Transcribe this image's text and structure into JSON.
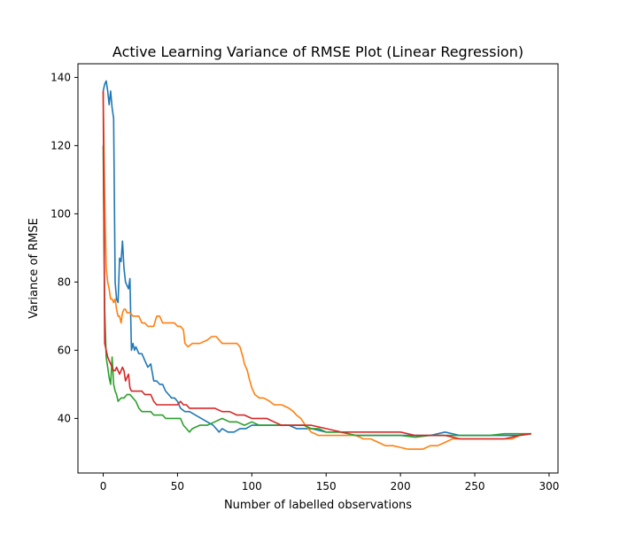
{
  "chart_data": {
    "type": "line",
    "title": "Active Learning Variance of RMSE Plot (Linear Regression)",
    "xlabel": "Number of labelled observations",
    "ylabel": "Variance of RMSE",
    "xlim": [
      -17,
      306
    ],
    "ylim": [
      24,
      144
    ],
    "xticks": [
      0,
      50,
      100,
      150,
      200,
      250,
      300
    ],
    "yticks": [
      40,
      60,
      80,
      100,
      120,
      140
    ],
    "grid": false,
    "legend": false,
    "series": [
      {
        "color": "#1f77b4",
        "points": [
          [
            0,
            136
          ],
          [
            1,
            138
          ],
          [
            2,
            139
          ],
          [
            3,
            136
          ],
          [
            4,
            132
          ],
          [
            5,
            136
          ],
          [
            6,
            131
          ],
          [
            7,
            128
          ],
          [
            8,
            80
          ],
          [
            9,
            75
          ],
          [
            10,
            74
          ],
          [
            11,
            87
          ],
          [
            12,
            86
          ],
          [
            13,
            92
          ],
          [
            14,
            84
          ],
          [
            15,
            80
          ],
          [
            16,
            79
          ],
          [
            17,
            78
          ],
          [
            18,
            81
          ],
          [
            19,
            60
          ],
          [
            20,
            62
          ],
          [
            21,
            60
          ],
          [
            22,
            61
          ],
          [
            24,
            59
          ],
          [
            26,
            59
          ],
          [
            28,
            57
          ],
          [
            30,
            55
          ],
          [
            32,
            56
          ],
          [
            34,
            51
          ],
          [
            36,
            51
          ],
          [
            38,
            50
          ],
          [
            40,
            50
          ],
          [
            42,
            48
          ],
          [
            44,
            47
          ],
          [
            46,
            46
          ],
          [
            48,
            46
          ],
          [
            50,
            45
          ],
          [
            52,
            43
          ],
          [
            55,
            42
          ],
          [
            58,
            42
          ],
          [
            62,
            41
          ],
          [
            66,
            40
          ],
          [
            70,
            39
          ],
          [
            74,
            38
          ],
          [
            78,
            36
          ],
          [
            80,
            37
          ],
          [
            84,
            36
          ],
          [
            88,
            36
          ],
          [
            92,
            37
          ],
          [
            96,
            37
          ],
          [
            100,
            38
          ],
          [
            105,
            38
          ],
          [
            110,
            38
          ],
          [
            115,
            38
          ],
          [
            120,
            38
          ],
          [
            125,
            38
          ],
          [
            130,
            37
          ],
          [
            135,
            37
          ],
          [
            140,
            37
          ],
          [
            150,
            36
          ],
          [
            160,
            36
          ],
          [
            170,
            35
          ],
          [
            180,
            35
          ],
          [
            190,
            35
          ],
          [
            200,
            35
          ],
          [
            210,
            35
          ],
          [
            220,
            35
          ],
          [
            230,
            36
          ],
          [
            240,
            35
          ],
          [
            250,
            35
          ],
          [
            260,
            35
          ],
          [
            270,
            35
          ],
          [
            280,
            35
          ],
          [
            288,
            35.5
          ]
        ]
      },
      {
        "color": "#ff7f0e",
        "points": [
          [
            0,
            136
          ],
          [
            1,
            105
          ],
          [
            2,
            84
          ],
          [
            3,
            80
          ],
          [
            4,
            78
          ],
          [
            5,
            75
          ],
          [
            6,
            75
          ],
          [
            7,
            74
          ],
          [
            8,
            75
          ],
          [
            9,
            72
          ],
          [
            10,
            70
          ],
          [
            11,
            70
          ],
          [
            12,
            68
          ],
          [
            13,
            71
          ],
          [
            14,
            72
          ],
          [
            15,
            72
          ],
          [
            16,
            71
          ],
          [
            18,
            71
          ],
          [
            20,
            70
          ],
          [
            22,
            70
          ],
          [
            24,
            70
          ],
          [
            26,
            68
          ],
          [
            28,
            68
          ],
          [
            30,
            67
          ],
          [
            32,
            67
          ],
          [
            34,
            67
          ],
          [
            36,
            70
          ],
          [
            38,
            70
          ],
          [
            40,
            68
          ],
          [
            42,
            68
          ],
          [
            44,
            68
          ],
          [
            46,
            68
          ],
          [
            48,
            68
          ],
          [
            50,
            67
          ],
          [
            52,
            67
          ],
          [
            54,
            66
          ],
          [
            55,
            62
          ],
          [
            57,
            61
          ],
          [
            60,
            62
          ],
          [
            65,
            62
          ],
          [
            70,
            63
          ],
          [
            73,
            64
          ],
          [
            76,
            64
          ],
          [
            80,
            62
          ],
          [
            85,
            62
          ],
          [
            90,
            62
          ],
          [
            92,
            61
          ],
          [
            94,
            58
          ],
          [
            95,
            56
          ],
          [
            96,
            55
          ],
          [
            97,
            54
          ],
          [
            98,
            52
          ],
          [
            100,
            49
          ],
          [
            102,
            47
          ],
          [
            105,
            46
          ],
          [
            108,
            46
          ],
          [
            112,
            45
          ],
          [
            115,
            44
          ],
          [
            120,
            44
          ],
          [
            125,
            43
          ],
          [
            128,
            42
          ],
          [
            130,
            41
          ],
          [
            133,
            40
          ],
          [
            136,
            38
          ],
          [
            140,
            36
          ],
          [
            145,
            35
          ],
          [
            150,
            35
          ],
          [
            155,
            35
          ],
          [
            160,
            35
          ],
          [
            165,
            35
          ],
          [
            170,
            35
          ],
          [
            175,
            34
          ],
          [
            180,
            34
          ],
          [
            185,
            33
          ],
          [
            190,
            32
          ],
          [
            195,
            32
          ],
          [
            200,
            31.5
          ],
          [
            205,
            31
          ],
          [
            210,
            31
          ],
          [
            215,
            31
          ],
          [
            220,
            32
          ],
          [
            225,
            32
          ],
          [
            230,
            33
          ],
          [
            235,
            34
          ],
          [
            240,
            34
          ],
          [
            245,
            34
          ],
          [
            250,
            34
          ],
          [
            255,
            34
          ],
          [
            260,
            34
          ],
          [
            265,
            34
          ],
          [
            270,
            34
          ],
          [
            275,
            34
          ],
          [
            280,
            35
          ],
          [
            288,
            35.5
          ]
        ]
      },
      {
        "color": "#2ca02c",
        "points": [
          [
            0,
            120
          ],
          [
            1,
            72
          ],
          [
            2,
            58
          ],
          [
            3,
            55
          ],
          [
            4,
            52
          ],
          [
            5,
            50
          ],
          [
            6,
            58
          ],
          [
            7,
            50
          ],
          [
            8,
            48
          ],
          [
            9,
            47
          ],
          [
            10,
            45
          ],
          [
            12,
            46
          ],
          [
            14,
            46
          ],
          [
            16,
            47
          ],
          [
            18,
            47
          ],
          [
            20,
            46
          ],
          [
            22,
            45
          ],
          [
            24,
            43
          ],
          [
            26,
            42
          ],
          [
            28,
            42
          ],
          [
            30,
            42
          ],
          [
            32,
            42
          ],
          [
            34,
            41
          ],
          [
            36,
            41
          ],
          [
            38,
            41
          ],
          [
            40,
            41
          ],
          [
            42,
            40
          ],
          [
            44,
            40
          ],
          [
            46,
            40
          ],
          [
            48,
            40
          ],
          [
            50,
            40
          ],
          [
            52,
            40
          ],
          [
            54,
            38
          ],
          [
            56,
            37
          ],
          [
            58,
            36
          ],
          [
            60,
            37
          ],
          [
            65,
            38
          ],
          [
            70,
            38
          ],
          [
            75,
            39
          ],
          [
            80,
            40
          ],
          [
            85,
            39
          ],
          [
            90,
            39
          ],
          [
            95,
            38
          ],
          [
            100,
            39
          ],
          [
            105,
            38
          ],
          [
            110,
            38
          ],
          [
            115,
            38
          ],
          [
            120,
            38
          ],
          [
            125,
            38
          ],
          [
            130,
            38
          ],
          [
            135,
            38
          ],
          [
            140,
            37
          ],
          [
            145,
            37
          ],
          [
            150,
            36
          ],
          [
            160,
            36
          ],
          [
            170,
            35
          ],
          [
            180,
            35
          ],
          [
            190,
            35
          ],
          [
            200,
            35
          ],
          [
            210,
            34.5
          ],
          [
            220,
            35
          ],
          [
            230,
            35
          ],
          [
            240,
            35
          ],
          [
            250,
            35
          ],
          [
            260,
            35
          ],
          [
            270,
            35.5
          ],
          [
            280,
            35.5
          ],
          [
            288,
            35.5
          ]
        ]
      },
      {
        "color": "#d62728",
        "points": [
          [
            0,
            136
          ],
          [
            1,
            62
          ],
          [
            2,
            60
          ],
          [
            3,
            58
          ],
          [
            4,
            57
          ],
          [
            5,
            56
          ],
          [
            6,
            55
          ],
          [
            7,
            54
          ],
          [
            8,
            54
          ],
          [
            9,
            55
          ],
          [
            10,
            54
          ],
          [
            11,
            53
          ],
          [
            12,
            54
          ],
          [
            13,
            55
          ],
          [
            14,
            54
          ],
          [
            15,
            51
          ],
          [
            16,
            52
          ],
          [
            17,
            53
          ],
          [
            18,
            49
          ],
          [
            19,
            48
          ],
          [
            20,
            48
          ],
          [
            22,
            48
          ],
          [
            24,
            48
          ],
          [
            26,
            48
          ],
          [
            28,
            47
          ],
          [
            30,
            47
          ],
          [
            32,
            47
          ],
          [
            34,
            45
          ],
          [
            36,
            44
          ],
          [
            38,
            44
          ],
          [
            40,
            44
          ],
          [
            42,
            44
          ],
          [
            44,
            44
          ],
          [
            46,
            44
          ],
          [
            48,
            44
          ],
          [
            50,
            44
          ],
          [
            52,
            45
          ],
          [
            54,
            44
          ],
          [
            56,
            44
          ],
          [
            58,
            43
          ],
          [
            60,
            43
          ],
          [
            65,
            43
          ],
          [
            70,
            43
          ],
          [
            75,
            43
          ],
          [
            80,
            42
          ],
          [
            85,
            42
          ],
          [
            90,
            41
          ],
          [
            95,
            41
          ],
          [
            100,
            40
          ],
          [
            105,
            40
          ],
          [
            110,
            40
          ],
          [
            115,
            39
          ],
          [
            120,
            38
          ],
          [
            125,
            38
          ],
          [
            130,
            38
          ],
          [
            135,
            38
          ],
          [
            140,
            38
          ],
          [
            150,
            37
          ],
          [
            160,
            36
          ],
          [
            170,
            36
          ],
          [
            180,
            36
          ],
          [
            190,
            36
          ],
          [
            200,
            36
          ],
          [
            210,
            35
          ],
          [
            220,
            35
          ],
          [
            230,
            35
          ],
          [
            240,
            34
          ],
          [
            250,
            34
          ],
          [
            260,
            34
          ],
          [
            270,
            34
          ],
          [
            280,
            35
          ],
          [
            288,
            35.5
          ]
        ]
      }
    ]
  }
}
